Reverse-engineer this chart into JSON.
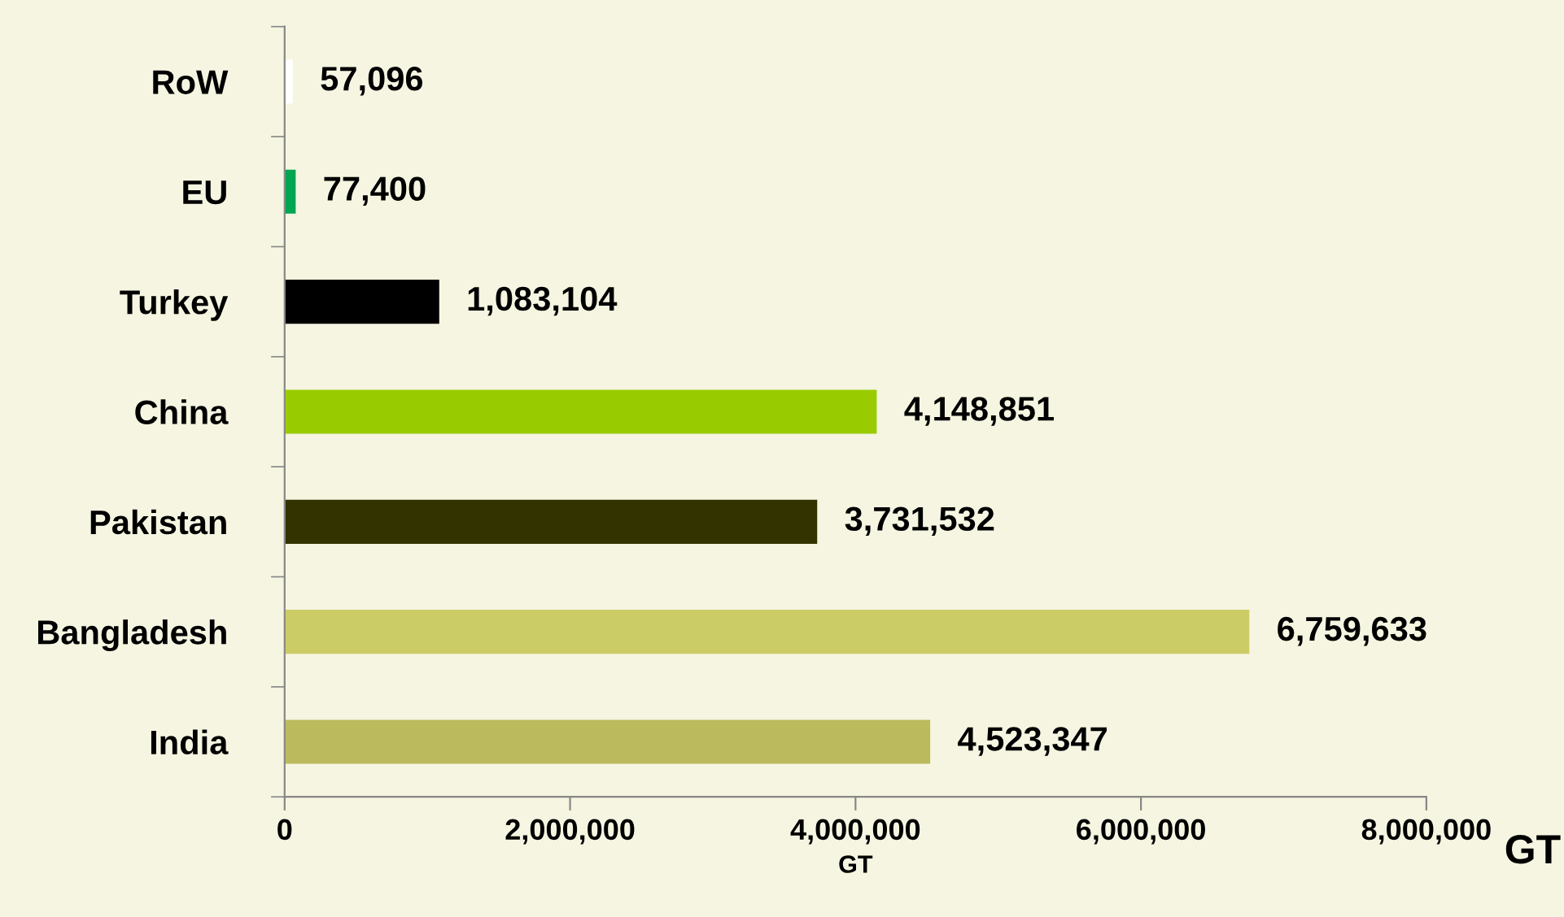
{
  "chart_data": {
    "type": "bar",
    "orientation": "horizontal",
    "categories": [
      "RoW",
      "EU",
      "Turkey",
      "China",
      "Pakistan",
      "Bangladesh",
      "India"
    ],
    "values": [
      57096,
      77400,
      1083104,
      4148851,
      3731532,
      6759633,
      4523347
    ],
    "colors": [
      "#ffffff",
      "#00a651",
      "#000000",
      "#99cc00",
      "#333300",
      "#cccc66",
      "#bbbb5e"
    ],
    "value_labels": [
      "57,096",
      "77,400",
      "1,083,104",
      "4,148,851",
      "3,731,532",
      "6,759,633",
      "4,523,347"
    ],
    "xlim": [
      0,
      8000000
    ],
    "xticks": [
      0,
      {
        "value": 2000000,
        "label": "2,000,000"
      },
      {
        "value": 4000000,
        "label": "4,000,000"
      },
      {
        "value": 6000000,
        "label": "6,000,000"
      },
      {
        "value": 8000000,
        "label": "8,000,000"
      }
    ],
    "xlabel": "GT",
    "annotations": [
      "GT"
    ],
    "grid": false
  }
}
